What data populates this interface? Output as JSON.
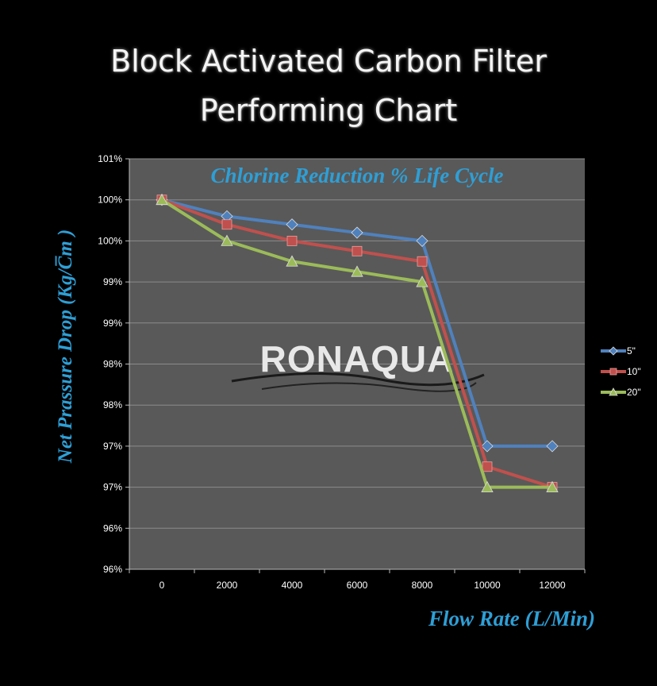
{
  "title_lines": [
    "Block Activated Carbon Filter",
    "Performing Chart"
  ],
  "watermark": "RONAQUA",
  "colors": {
    "background": "#000000",
    "plot_bg": "#595959",
    "grid": "#8c8c8c",
    "label": "#2e9fd6"
  },
  "chart_data": {
    "type": "line",
    "title": "Block Activated Carbon Filter Performing Chart",
    "subtitle": "Chlorine Reduction % Life Cycle",
    "xlabel": "Flow Rate (L/Min)",
    "ylabel": "Net Prassure Drop (Kg/C̅m )",
    "x": [
      0,
      2000,
      4000,
      6000,
      8000,
      10000,
      12000
    ],
    "x_tick_labels": [
      "0",
      "2000",
      "4000",
      "6000",
      "8000",
      "10000",
      "12000"
    ],
    "ylim": [
      96,
      101
    ],
    "y_tick_labels": [
      "96%",
      "96%",
      "97%",
      "97%",
      "98%",
      "98%",
      "99%",
      "99%",
      "100%",
      "100%",
      "101%"
    ],
    "grid": true,
    "legend_position": "right",
    "series": [
      {
        "name": "5\"",
        "color": "#4f81bd",
        "marker": "diamond",
        "values": [
          100.5,
          100.3,
          100.2,
          100.1,
          100.0,
          97.5,
          97.5
        ]
      },
      {
        "name": "10\"",
        "color": "#c0504d",
        "marker": "square",
        "values": [
          100.5,
          100.2,
          100.0,
          99.875,
          99.75,
          97.25,
          97.0
        ]
      },
      {
        "name": "20\"",
        "color": "#9bbb59",
        "marker": "triangle",
        "values": [
          100.5,
          100.0,
          99.75,
          99.625,
          99.5,
          97.0,
          97.0
        ]
      }
    ]
  }
}
